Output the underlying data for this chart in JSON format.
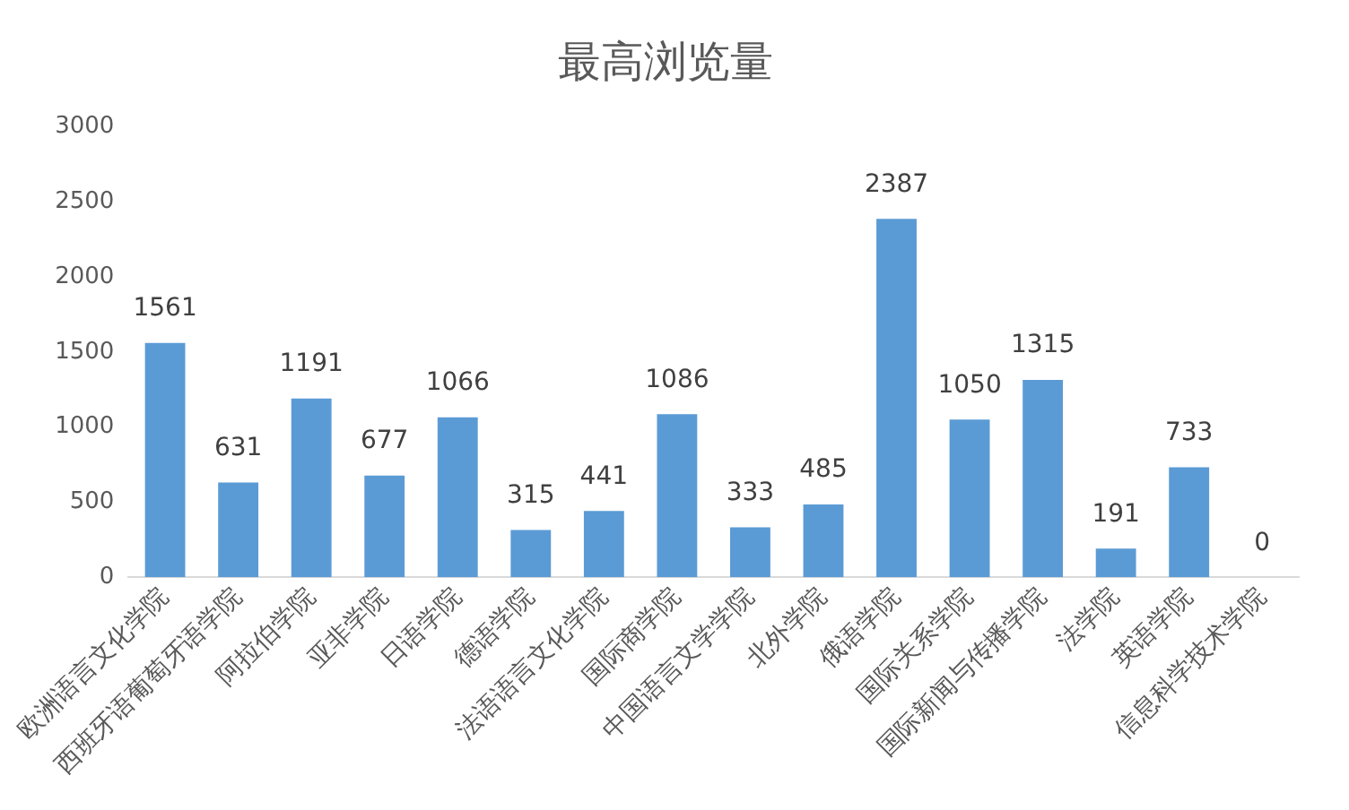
{
  "chart_data": {
    "type": "bar",
    "title": "最高浏览量",
    "categories": [
      "欧洲语言文化学院",
      "西班牙语葡萄牙语学院",
      "阿拉伯学院",
      "亚非学院",
      "日语学院",
      "德语学院",
      "法语语言文化学院",
      "国际商学院",
      "中国语言文学学院",
      "北外学院",
      "俄语学院",
      "国际关系学院",
      "国际新闻与传播学院",
      "法学院",
      "英语学院",
      "信息科学技术学院"
    ],
    "values": [
      1561,
      631,
      1191,
      677,
      1066,
      315,
      441,
      1086,
      333,
      485,
      2387,
      1050,
      1315,
      191,
      733,
      0
    ],
    "color": "#5b9bd5",
    "ylim": [
      0,
      3000
    ],
    "yticks": [
      0,
      500,
      1000,
      1500,
      2000,
      2500,
      3000
    ],
    "grid": false,
    "data_labels": true,
    "legend": false
  }
}
